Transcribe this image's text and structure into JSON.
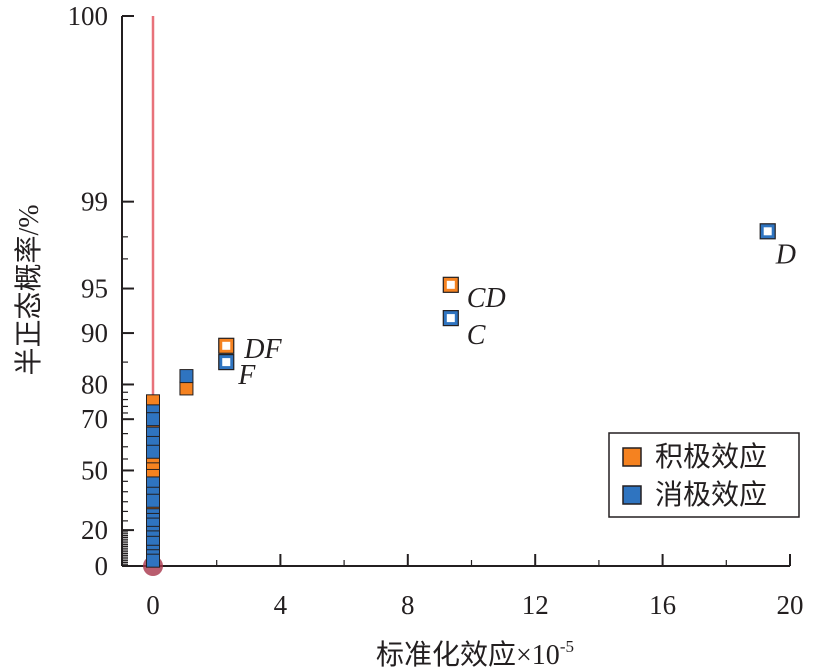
{
  "chart_data": {
    "type": "scatter",
    "title": "",
    "xlabel": "标准化效应",
    "xlabel_unit": "×10",
    "xlabel_exponent": "-5",
    "ylabel": "半正态概率/%",
    "xlim": [
      -0.8,
      20
    ],
    "x_ticks": [
      0,
      4,
      8,
      12,
      16,
      20
    ],
    "x_tick_labels": [
      "0",
      "4",
      "8",
      "12",
      "16",
      "20"
    ],
    "y_scale": "half-normal probability",
    "y_ticks": [
      0,
      20,
      50,
      70,
      80,
      90,
      95,
      99,
      100
    ],
    "y_tick_labels": [
      "0",
      "20",
      "50",
      "70",
      "80",
      "90",
      "95",
      "99",
      "100"
    ],
    "reference_line": {
      "x": 0,
      "y_from": 0,
      "y_to": 100,
      "color": "#e8727a"
    },
    "colors": {
      "positive": "#f58220",
      "negative": "#2f74c0",
      "hollow_fill": "#ffffff"
    },
    "legend": {
      "placement": "bottom-right",
      "items": [
        {
          "label": "积极效应",
          "color": "#f58220"
        },
        {
          "label": "消极效应",
          "color": "#2f74c0"
        }
      ]
    },
    "series": [
      {
        "name": "积极效应",
        "color": "#f58220",
        "points": [
          {
            "x": 0,
            "y": 75.5
          },
          {
            "x": 0,
            "y": 67
          },
          {
            "x": 0,
            "y": 63
          },
          {
            "x": 0,
            "y": 60
          },
          {
            "x": 0,
            "y": 56.5
          },
          {
            "x": 0,
            "y": 53.5
          },
          {
            "x": 0,
            "y": 50.5
          },
          {
            "x": 0,
            "y": 47.5
          },
          {
            "x": 0,
            "y": 41
          },
          {
            "x": 0,
            "y": 37
          },
          {
            "x": 0,
            "y": 34
          },
          {
            "x": 0,
            "y": 31
          },
          {
            "x": 0,
            "y": 21
          },
          {
            "x": 0,
            "y": 10.5
          },
          {
            "x": 1.05,
            "y": 79
          },
          {
            "x": 2.3,
            "y": 88,
            "label": "DF",
            "hollow": true
          },
          {
            "x": 9.35,
            "y": 95.3,
            "label": "CD",
            "hollow": true
          }
        ]
      },
      {
        "name": "消极效应",
        "color": "#2f74c0",
        "points": [
          {
            "x": 0,
            "y": 72.5
          },
          {
            "x": 0,
            "y": 70
          },
          {
            "x": 0,
            "y": 65
          },
          {
            "x": 0,
            "y": 61.5
          },
          {
            "x": 0,
            "y": 58
          },
          {
            "x": 0,
            "y": 44
          },
          {
            "x": 0,
            "y": 39
          },
          {
            "x": 0,
            "y": 35.5
          },
          {
            "x": 0,
            "y": 28
          },
          {
            "x": 0,
            "y": 25.5
          },
          {
            "x": 0,
            "y": 23
          },
          {
            "x": 0,
            "y": 18.5
          },
          {
            "x": 0,
            "y": 16
          },
          {
            "x": 0,
            "y": 13
          },
          {
            "x": 0,
            "y": 8
          },
          {
            "x": 0,
            "y": 5.5
          },
          {
            "x": 0,
            "y": 3
          },
          {
            "x": 1.05,
            "y": 82
          },
          {
            "x": 2.3,
            "y": 85,
            "label": "F",
            "hollow": true
          },
          {
            "x": 9.35,
            "y": 92,
            "label": "C",
            "hollow": true
          },
          {
            "x": 19.3,
            "y": 98.2,
            "label": "D",
            "hollow": true
          }
        ]
      }
    ],
    "origin_marker": {
      "x": 0,
      "y": 0,
      "color": "#a8344a"
    }
  }
}
